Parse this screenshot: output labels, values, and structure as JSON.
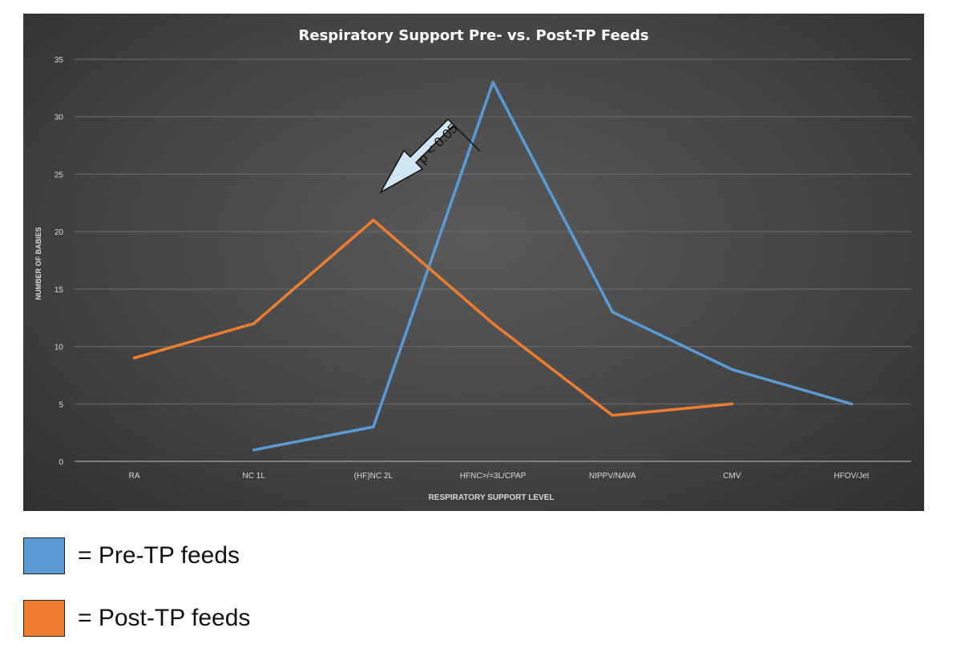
{
  "chart_data": {
    "type": "line",
    "title": "Respiratory Support Pre- vs. Post-TP Feeds",
    "xlabel": "RESPIRATORY SUPPORT LEVEL",
    "ylabel": "NUMBER OF BABIES",
    "ylim": [
      0,
      35
    ],
    "yticks": [
      "0",
      "5",
      "10",
      "15",
      "20",
      "25",
      "30",
      "35"
    ],
    "categories": [
      "RA",
      "NC 1L",
      "(HF)NC 2L",
      "HFNC>/=3L/CPAP",
      "NIPPV/NAVA",
      "CMV",
      "HFOV/Jet"
    ],
    "grid": true,
    "series": [
      {
        "name": "Pre-TP feeds",
        "color": "#5b9bd5",
        "values": [
          null,
          1,
          3,
          33,
          13,
          8,
          5
        ]
      },
      {
        "name": "Post-TP feeds",
        "color": "#ed7d31",
        "values": [
          9,
          12,
          21,
          12,
          4,
          5,
          null
        ]
      }
    ],
    "annotation": {
      "text": "p < 0.05",
      "points_to_category": "(HF)NC 2L"
    }
  },
  "legend": [
    {
      "label": "= Pre-TP feeds",
      "color": "#5b9bd5"
    },
    {
      "label": "= Post-TP feeds",
      "color": "#ed7d31"
    }
  ]
}
